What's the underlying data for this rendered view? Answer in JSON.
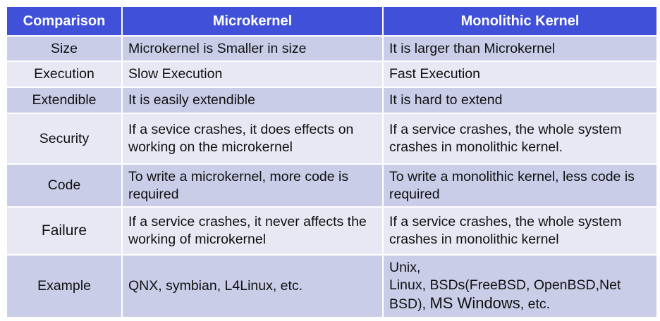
{
  "headers": [
    "Comparison",
    "Microkernel",
    "Monolithic Kernel"
  ],
  "rows": [
    {
      "label": "Size",
      "micro": "Microkernel is Smaller in size",
      "mono": "It is larger than Microkernel"
    },
    {
      "label": "Execution",
      "micro": "Slow Execution",
      "mono": "Fast Execution"
    },
    {
      "label": "Extendible",
      "micro": "It is easily extendible",
      "mono": "It is hard to extend"
    },
    {
      "label": "Security",
      "micro": "If a sevice crashes, it does effects on working on the microkernel",
      "mono": "If a service crashes, the whole system crashes in monolithic kernel."
    },
    {
      "label": "Code",
      "micro": "To write a microkernel, more code is required",
      "mono": "To write a monolithic kernel, less code is required"
    },
    {
      "label": "Failure",
      "micro": "If a service crashes, it never affects the working of microkernel",
      "mono": "If a service crashes, the whole system crashes in monolithic kernel"
    },
    {
      "label": "Example",
      "micro": "QNX, symbian, L4Linux, etc.",
      "mono_lines": {
        "line1": "Unix,",
        "line2": "Linux, BSDs(FreeBSD, OpenBSD,Net",
        "line3a": "BSD), ",
        "line3b": "MS Windows",
        "line3c": ", etc."
      }
    }
  ],
  "colors": {
    "header_bg": "#4050d8",
    "row_dark": "#c9cde8",
    "row_light": "#e7e8f4",
    "header_text": "#ffffff"
  }
}
